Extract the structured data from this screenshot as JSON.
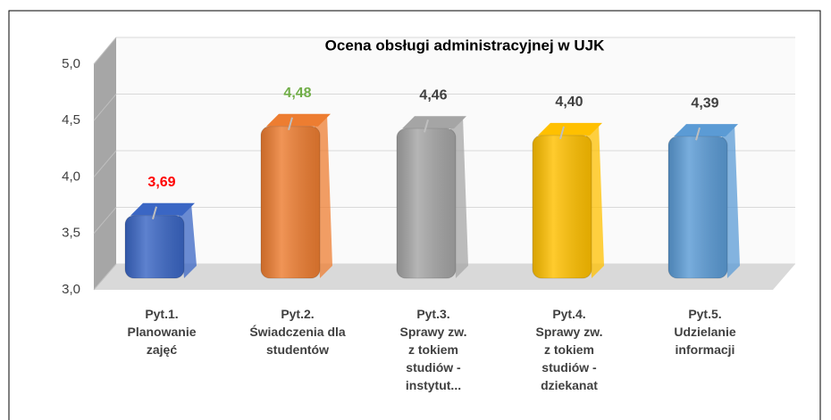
{
  "chart_data": {
    "type": "bar3d",
    "title": "Ocena obsługi administracyjnej w UJK",
    "categories": [
      "Pyt.1.\nPlanowanie\nzajęć",
      "Pyt.2.\nŚwiadczenia dla\nstudentów",
      "Pyt.3.\nSprawy zw.\nz tokiem\nstudiów -\ninstytut...",
      "Pyt.4.\nSprawy zw.\nz tokiem\nstudiów -\ndziekanat",
      "Pyt.5.\nUdzielanie\ninformacji"
    ],
    "values": [
      3.69,
      4.48,
      4.46,
      4.4,
      4.39
    ],
    "value_labels": [
      "3,69",
      "4,48",
      "4,46",
      "4,40",
      "4,39"
    ],
    "colors": [
      "#3a66c4",
      "#ed7d31",
      "#a5a5a5",
      "#ffc000",
      "#5b9bd5"
    ],
    "value_label_colors": [
      "#ff0000",
      "#70ad47",
      "#404040",
      "#404040",
      "#404040"
    ],
    "ylim": [
      3,
      5
    ],
    "yticks": [
      {
        "value": 3,
        "label": "3,0"
      },
      {
        "value": 3.5,
        "label": "3,5"
      },
      {
        "value": 4,
        "label": "4,0"
      },
      {
        "value": 4.5,
        "label": "4,5"
      },
      {
        "value": 5,
        "label": "5,0"
      }
    ],
    "grid": true
  }
}
